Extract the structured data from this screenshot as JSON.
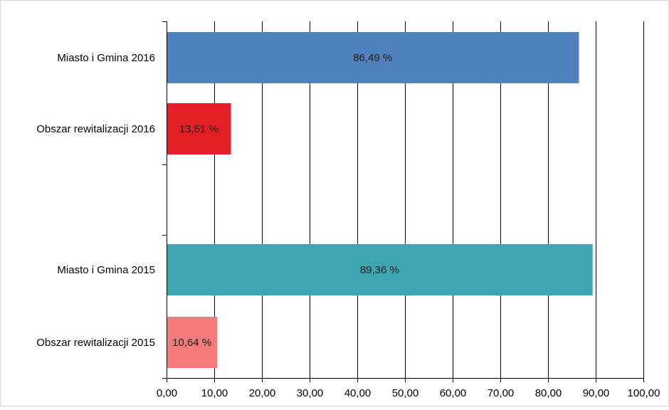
{
  "chart_data": {
    "type": "bar",
    "orientation": "horizontal",
    "title": "",
    "xlabel": "",
    "ylabel": "",
    "xlim": [
      0,
      100
    ],
    "grid": true,
    "legend": "none",
    "x_ticks": [
      "0,00",
      "10,00",
      "20,00",
      "30,00",
      "40,00",
      "50,00",
      "60,00",
      "70,00",
      "80,00",
      "90,00",
      "100,00"
    ],
    "categories": [
      "Miasto i Gmina 2016",
      "Obszar rewitalizacji 2016",
      "Miasto i Gmina 2015",
      "Obszar rewitalizacji 2015"
    ],
    "values": [
      86.49,
      13.51,
      89.36,
      10.64
    ],
    "data_labels": [
      "86,49 %",
      "13,51 %",
      "89,36 %",
      "10,64 %"
    ],
    "colors": [
      "#4f81bd",
      "#e31e24",
      "#3ea5b0",
      "#f47b7b"
    ]
  }
}
